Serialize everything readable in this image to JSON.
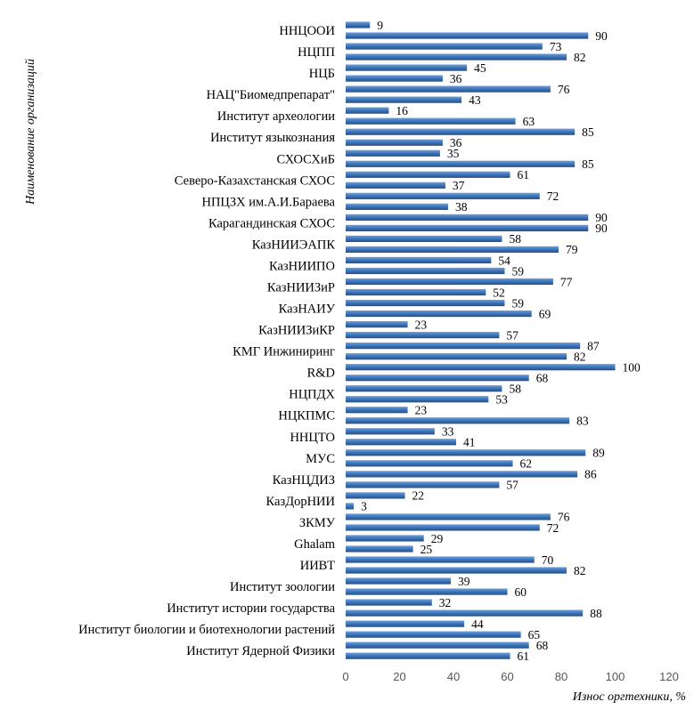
{
  "chart_data": {
    "type": "bar",
    "orientation": "horizontal",
    "xlabel": "Износ оргтехники, %",
    "ylabel": "Наименование организаций",
    "xlim": [
      0,
      120
    ],
    "xticks": [
      "0",
      "20",
      "40",
      "60",
      "80",
      "100",
      "120"
    ],
    "grid": false,
    "bar_color": "#3f78bd",
    "groups": [
      {
        "label": "ННЦООИ",
        "values": [
          9,
          90
        ]
      },
      {
        "label": "НЦПП",
        "values": [
          73,
          82
        ]
      },
      {
        "label": "НЦБ",
        "values": [
          45,
          36
        ]
      },
      {
        "label": "НАЦ\"Биомедпрепарат\"",
        "values": [
          76,
          43
        ]
      },
      {
        "label": "Институт археологии",
        "values": [
          16,
          63
        ]
      },
      {
        "label": "Институт языкознания",
        "values": [
          85,
          36
        ]
      },
      {
        "label": "СХОСХиБ",
        "values": [
          35,
          85
        ]
      },
      {
        "label": "Северо-Казахстанская СХОС",
        "values": [
          61,
          37
        ]
      },
      {
        "label": "НПЦЗХ им.А.И.Бараева",
        "values": [
          72,
          38
        ]
      },
      {
        "label": "Карагандинская СХОС",
        "values": [
          90,
          90
        ]
      },
      {
        "label": "КазНИИЭАПК",
        "values": [
          58,
          79
        ]
      },
      {
        "label": "КазНИИПО",
        "values": [
          54,
          59
        ]
      },
      {
        "label": "КазНИИЗиР",
        "values": [
          77,
          52
        ]
      },
      {
        "label": "КазНАИУ",
        "values": [
          59,
          69
        ]
      },
      {
        "label": "КазНИИЗиКР",
        "values": [
          23,
          57
        ]
      },
      {
        "label": "КМГ Инжиниринг",
        "values": [
          87,
          82
        ]
      },
      {
        "label": "R&D",
        "values": [
          100,
          68
        ]
      },
      {
        "label": "НЦПДХ",
        "values": [
          58,
          53
        ]
      },
      {
        "label": "НЦКПМС",
        "values": [
          23,
          83
        ]
      },
      {
        "label": "ННЦТО",
        "values": [
          33,
          41
        ]
      },
      {
        "label": "МУС",
        "values": [
          89,
          62
        ]
      },
      {
        "label": "КазНЦДИЗ",
        "values": [
          86,
          57
        ]
      },
      {
        "label": "КазДорНИИ",
        "values": [
          22,
          3
        ]
      },
      {
        "label": "ЗКМУ",
        "values": [
          76,
          72
        ]
      },
      {
        "label": "Ghalam",
        "values": [
          29,
          25
        ]
      },
      {
        "label": "ИИВТ",
        "values": [
          70,
          82
        ]
      },
      {
        "label": "Институт зоологии",
        "values": [
          39,
          60
        ]
      },
      {
        "label": "Институт истории государства",
        "values": [
          32,
          88
        ]
      },
      {
        "label": "Институт биологии и биотехнологии растений",
        "values": [
          44,
          65
        ]
      },
      {
        "label": "Институт Ядерной Физики",
        "values": [
          68,
          61
        ]
      }
    ]
  }
}
